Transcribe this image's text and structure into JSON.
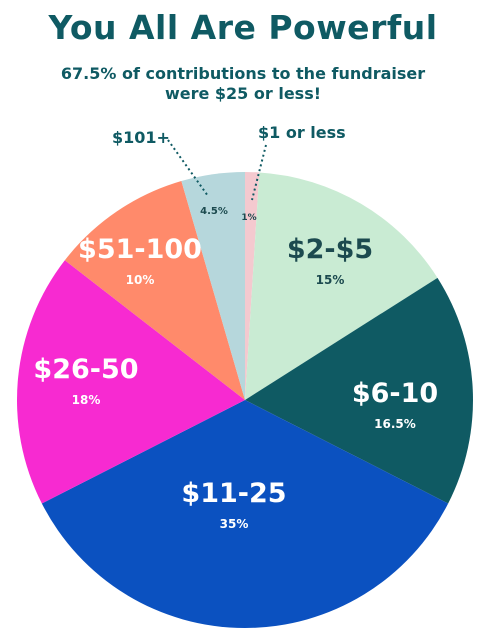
{
  "title": "You All Are Powerful",
  "subtitle": "67.5% of contributions to the fundraiser were $25 or less!",
  "colors": {
    "title": "#0f5a63",
    "callout": "#0f5a63"
  },
  "chart_data": {
    "type": "pie",
    "slices": [
      {
        "label": "$1 or less",
        "value": 1,
        "pct_label": "1%",
        "color": "#f4c9cf"
      },
      {
        "label": "$2-$5",
        "value": 15,
        "pct_label": "15%",
        "color": "#c9ebd3"
      },
      {
        "label": "$6-10",
        "value": 16.5,
        "pct_label": "16.5%",
        "color": "#0f5a63"
      },
      {
        "label": "$11-25",
        "value": 35,
        "pct_label": "35%",
        "color": "#0b51c0"
      },
      {
        "label": "$26-50",
        "value": 18,
        "pct_label": "18%",
        "color": "#f72ad1"
      },
      {
        "label": "$51-100",
        "value": 10,
        "pct_label": "10%",
        "color": "#ff8a6b"
      },
      {
        "label": "$101+",
        "value": 4.5,
        "pct_label": "4.5%",
        "color": "#b6d7dc"
      }
    ]
  }
}
